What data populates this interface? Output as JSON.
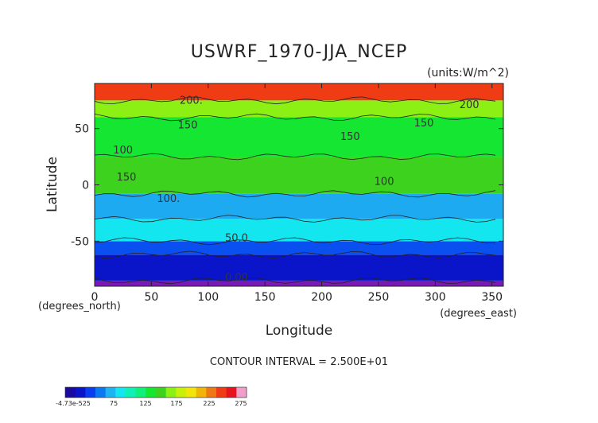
{
  "chart_data": {
    "type": "heatmap",
    "title": "USWRF_1970-JJA_NCEP",
    "units": "(units:W/m^2)",
    "xlabel": "Longitude",
    "ylabel": "Latitude",
    "x_unit_label": "(degrees_east)",
    "y_unit_label": "(degrees_north)",
    "xlim": [
      0,
      360
    ],
    "ylim": [
      -90,
      90
    ],
    "x_ticks": [
      "0",
      "50",
      "100",
      "150",
      "200",
      "250",
      "300",
      "350"
    ],
    "y_ticks": [
      "50",
      "0",
      "-50"
    ],
    "contour_interval_text": "CONTOUR INTERVAL = 2.500E+01",
    "contour_labels": [
      {
        "text": "200.",
        "lon": 85,
        "lat": 72
      },
      {
        "text": "200",
        "lon": 330,
        "lat": 68
      },
      {
        "text": "150",
        "lon": 82,
        "lat": 50
      },
      {
        "text": "150",
        "lon": 290,
        "lat": 52
      },
      {
        "text": "150",
        "lon": 225,
        "lat": 40
      },
      {
        "text": "150",
        "lon": 28,
        "lat": 4
      },
      {
        "text": "100",
        "lon": 25,
        "lat": 28
      },
      {
        "text": "100.",
        "lon": 65,
        "lat": -15
      },
      {
        "text": "100",
        "lon": 255,
        "lat": 0
      },
      {
        "text": "50.0",
        "lon": 125,
        "lat": -50
      },
      {
        "text": "0.00",
        "lon": 125,
        "lat": -85
      }
    ],
    "colorbar": {
      "tick_labels": [
        "-4.73e-525",
        "75",
        "125",
        "175",
        "225",
        "275"
      ],
      "colors": [
        "#1a0aa0",
        "#0a14c8",
        "#0a3cf0",
        "#0a78f0",
        "#1eb4f0",
        "#14e6f0",
        "#0ff0b4",
        "#0ff078",
        "#14e632",
        "#3cd21e",
        "#8cf014",
        "#c8f00a",
        "#f0e60a",
        "#f0b40a",
        "#f07814",
        "#f03c14",
        "#e6141e",
        "#f0a0c8"
      ],
      "values": [
        0,
        275
      ]
    },
    "bands": [
      {
        "lat_min": -90,
        "lat_max": -85,
        "value": 0,
        "color": "#7a1ab4"
      },
      {
        "lat_min": -85,
        "lat_max": -62,
        "value": 25,
        "color": "#0a14c8"
      },
      {
        "lat_min": -62,
        "lat_max": -50,
        "value": 50,
        "color": "#0a50f0"
      },
      {
        "lat_min": -50,
        "lat_max": -30,
        "value": 75,
        "color": "#14e6f0"
      },
      {
        "lat_min": -30,
        "lat_max": -8,
        "value": 100,
        "color": "#1eaaf0"
      },
      {
        "lat_min": -8,
        "lat_max": 25,
        "value": 150,
        "color": "#3cd21e"
      },
      {
        "lat_min": 25,
        "lat_max": 60,
        "value": 150,
        "color": "#14e632"
      },
      {
        "lat_min": 60,
        "lat_max": 75,
        "value": 175,
        "color": "#8cf014"
      },
      {
        "lat_min": 75,
        "lat_max": 90,
        "value": 225,
        "color": "#f03c14"
      }
    ]
  }
}
